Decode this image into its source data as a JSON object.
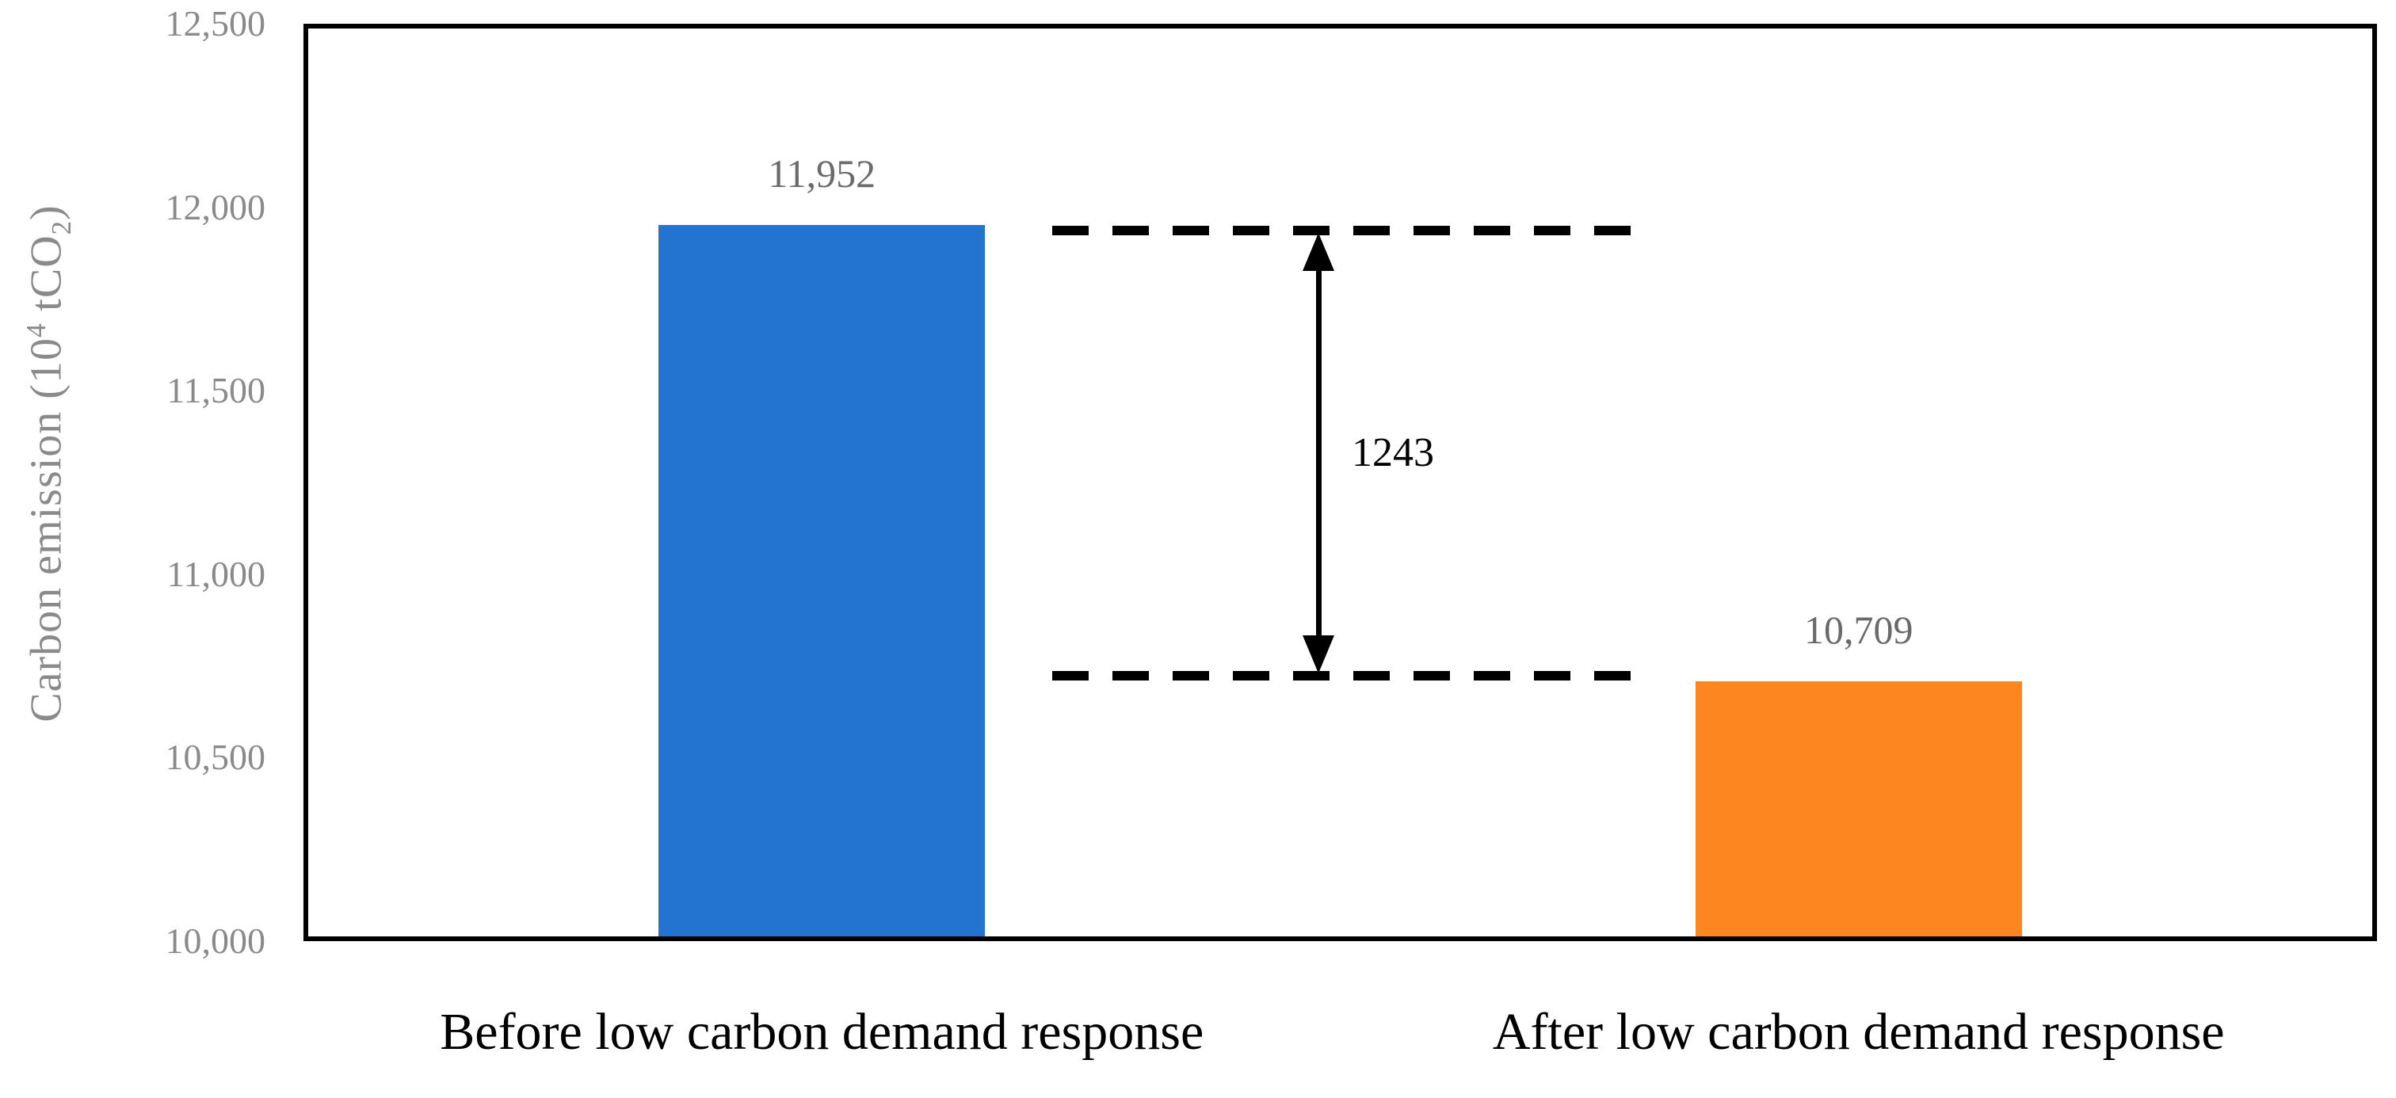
{
  "chart_data": {
    "type": "bar",
    "title": "",
    "ylabel": "Carbon emission (10^4 tCO2)",
    "ylabel_parts": {
      "prefix": "Carbon emission (10",
      "superscript": "4",
      "mid": " tCO",
      "subscript": "2",
      "suffix": ")"
    },
    "categories": [
      "Before low carbon demand response",
      "After low carbon demand response"
    ],
    "values": [
      11952,
      10709
    ],
    "value_labels": [
      "11,952",
      "10,709"
    ],
    "bar_colors": [
      "#2274D0",
      "#FD8621"
    ],
    "ylim": [
      10000,
      12500
    ],
    "ytick_values": [
      10000,
      10500,
      11000,
      11500,
      12000,
      12500
    ],
    "ytick_labels": [
      "10,000",
      "10,500",
      "11,000",
      "11,500",
      "12,000",
      "12,500"
    ],
    "grid": false,
    "annotation": {
      "label": "1243",
      "type": "difference-arrow",
      "between": [
        11952,
        10709
      ]
    },
    "styles": {
      "tick_label_color": "#8a8a8a",
      "value_label_color": "#6a6a6a",
      "axis_title_color": "#8a8a8a",
      "category_label_color": "#000000",
      "plot_border_color": "#000000"
    }
  }
}
